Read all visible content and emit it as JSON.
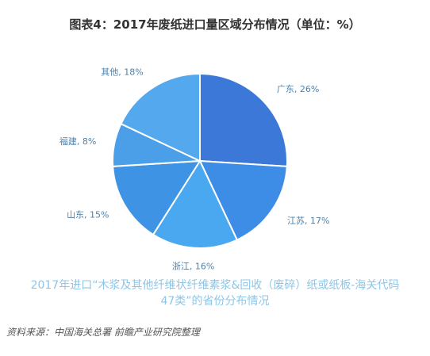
{
  "title": "图表4：2017年废纸进口量区域分布情况（单位：%）",
  "chart_data": {
    "type": "pie",
    "title": "图表4：2017年废纸进口量区域分布情况（单位：%）",
    "slices": [
      {
        "label": "广东, 26%",
        "value": 26,
        "color": "#3c78d8"
      },
      {
        "label": "江苏, 17%",
        "value": 17,
        "color": "#3d8ce6"
      },
      {
        "label": "浙江, 16%",
        "value": 16,
        "color": "#4aa8f0"
      },
      {
        "label": "山东, 15%",
        "value": 15,
        "color": "#3f93e4"
      },
      {
        "label": "福建, 8%",
        "value": 8,
        "color": "#4b9fe8"
      },
      {
        "label": "其他, 18%",
        "value": 18,
        "color": "#54a9ee"
      }
    ]
  },
  "caption": {
    "line1": "2017年进口“木浆及其他纤维状纤维素浆&回收（废碎）纸或纸板-海关代码",
    "line2": "47类”的省份分布情况"
  },
  "source": "资料来源：中国海关总署 前瞻产业研究院整理"
}
